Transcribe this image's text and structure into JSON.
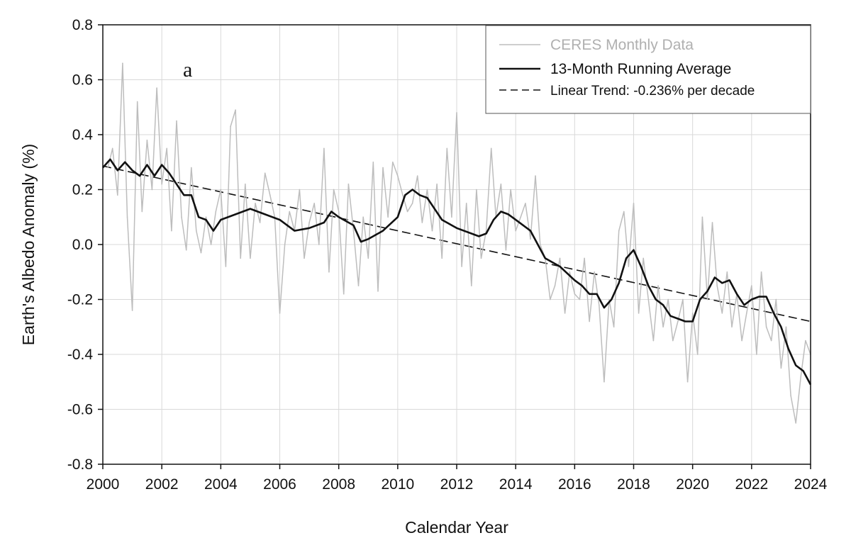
{
  "chart_data": {
    "type": "line",
    "title": "",
    "panel_label": "a",
    "xlabel": "Calendar Year",
    "ylabel": "Earth's Albedo Anomaly (%)",
    "xlim": [
      2000,
      2024
    ],
    "ylim": [
      -0.8,
      0.8
    ],
    "x_ticks": [
      2000,
      2002,
      2004,
      2006,
      2008,
      2010,
      2012,
      2014,
      2016,
      2018,
      2020,
      2022,
      2024
    ],
    "y_ticks": [
      0.8,
      0.6,
      0.4,
      0.2,
      0.0,
      -0.2,
      -0.4,
      -0.6,
      -0.8
    ],
    "x_tick_labels": [
      "2000",
      "2002",
      "2004",
      "2006",
      "2008",
      "2010",
      "2012",
      "2014",
      "2016",
      "2018",
      "2020",
      "2022",
      "2024"
    ],
    "y_tick_labels": [
      "0.8",
      "0.6",
      "0.4",
      "0.2",
      "0.0",
      "-0.2",
      "-0.4",
      "-0.6",
      "-0.8"
    ],
    "grid": true,
    "legend": {
      "position": "top-right",
      "entries": [
        {
          "label": "CERES Monthly Data",
          "style": "thin-gray"
        },
        {
          "label": "13-Month Running Average",
          "style": "thick-black"
        },
        {
          "label": "Linear Trend: -0.236% per decade",
          "style": "dashed-black"
        }
      ]
    },
    "colors": {
      "monthly": "#bdbdbd",
      "running": "#111111",
      "trend": "#111111",
      "grid": "#d9d9d9",
      "axis": "#111111"
    },
    "series": [
      {
        "name": "CERES Monthly Data",
        "x": [
          2000.17,
          2000.33,
          2000.5,
          2000.67,
          2000.83,
          2001.0,
          2001.17,
          2001.33,
          2001.5,
          2001.67,
          2001.83,
          2002.0,
          2002.17,
          2002.33,
          2002.5,
          2002.67,
          2002.83,
          2003.0,
          2003.17,
          2003.33,
          2003.5,
          2003.67,
          2003.83,
          2004.0,
          2004.17,
          2004.33,
          2004.5,
          2004.67,
          2004.83,
          2005.0,
          2005.17,
          2005.33,
          2005.5,
          2005.67,
          2005.83,
          2006.0,
          2006.17,
          2006.33,
          2006.5,
          2006.67,
          2006.83,
          2007.0,
          2007.17,
          2007.33,
          2007.5,
          2007.67,
          2007.83,
          2008.0,
          2008.17,
          2008.33,
          2008.5,
          2008.67,
          2008.83,
          2009.0,
          2009.17,
          2009.33,
          2009.5,
          2009.67,
          2009.83,
          2010.0,
          2010.17,
          2010.33,
          2010.5,
          2010.67,
          2010.83,
          2011.0,
          2011.17,
          2011.33,
          2011.5,
          2011.67,
          2011.83,
          2012.0,
          2012.17,
          2012.33,
          2012.5,
          2012.67,
          2012.83,
          2013.0,
          2013.17,
          2013.33,
          2013.5,
          2013.67,
          2013.83,
          2014.0,
          2014.17,
          2014.33,
          2014.5,
          2014.67,
          2014.83,
          2015.0,
          2015.17,
          2015.33,
          2015.5,
          2015.67,
          2015.83,
          2016.0,
          2016.17,
          2016.33,
          2016.5,
          2016.67,
          2016.83,
          2017.0,
          2017.17,
          2017.33,
          2017.5,
          2017.67,
          2017.83,
          2018.0,
          2018.17,
          2018.33,
          2018.5,
          2018.67,
          2018.83,
          2019.0,
          2019.17,
          2019.33,
          2019.5,
          2019.67,
          2019.83,
          2020.0,
          2020.17,
          2020.33,
          2020.5,
          2020.67,
          2020.83,
          2021.0,
          2021.17,
          2021.33,
          2021.5,
          2021.67,
          2021.83,
          2022.0,
          2022.17,
          2022.33,
          2022.5,
          2022.67,
          2022.83,
          2023.0,
          2023.17,
          2023.33,
          2023.5,
          2023.67,
          2023.83,
          2024.0
        ],
        "y": [
          0.28,
          0.35,
          0.18,
          0.66,
          0.1,
          -0.24,
          0.52,
          0.12,
          0.38,
          0.2,
          0.57,
          0.22,
          0.35,
          0.05,
          0.45,
          0.1,
          -0.02,
          0.28,
          0.05,
          -0.03,
          0.1,
          0.0,
          0.12,
          0.2,
          -0.08,
          0.43,
          0.49,
          -0.05,
          0.22,
          -0.05,
          0.15,
          0.08,
          0.26,
          0.18,
          0.1,
          -0.25,
          0.0,
          0.12,
          0.05,
          0.2,
          -0.05,
          0.08,
          0.15,
          0.0,
          0.35,
          -0.1,
          0.2,
          0.12,
          -0.18,
          0.22,
          0.05,
          -0.15,
          0.1,
          -0.05,
          0.3,
          -0.17,
          0.28,
          0.1,
          0.3,
          0.25,
          0.18,
          0.12,
          0.15,
          0.25,
          0.08,
          0.2,
          0.05,
          0.22,
          -0.05,
          0.35,
          0.1,
          0.48,
          -0.08,
          0.15,
          -0.15,
          0.2,
          -0.05,
          0.05,
          0.35,
          0.1,
          0.22,
          -0.02,
          0.2,
          0.05,
          0.1,
          0.15,
          0.02,
          0.25,
          0.0,
          -0.05,
          -0.2,
          -0.15,
          -0.05,
          -0.25,
          -0.1,
          -0.18,
          -0.2,
          -0.05,
          -0.28,
          -0.1,
          -0.22,
          -0.5,
          -0.2,
          -0.3,
          0.05,
          0.12,
          -0.08,
          0.15,
          -0.25,
          -0.05,
          -0.2,
          -0.35,
          -0.15,
          -0.3,
          -0.2,
          -0.35,
          -0.28,
          -0.2,
          -0.5,
          -0.25,
          -0.4,
          0.1,
          -0.2,
          0.08,
          -0.15,
          -0.25,
          -0.1,
          -0.3,
          -0.18,
          -0.35,
          -0.25,
          -0.15,
          -0.4,
          -0.1,
          -0.3,
          -0.35,
          -0.2,
          -0.45,
          -0.3,
          -0.55,
          -0.65,
          -0.48,
          -0.35,
          -0.4
        ]
      },
      {
        "name": "13-Month Running Average",
        "x": [
          2000.0,
          2000.25,
          2000.5,
          2000.75,
          2001.0,
          2001.25,
          2001.5,
          2001.75,
          2002.0,
          2002.25,
          2002.5,
          2002.75,
          2003.0,
          2003.25,
          2003.5,
          2003.75,
          2004.0,
          2004.5,
          2005.0,
          2005.5,
          2006.0,
          2006.5,
          2007.0,
          2007.5,
          2007.75,
          2008.0,
          2008.5,
          2008.75,
          2009.0,
          2009.5,
          2010.0,
          2010.25,
          2010.5,
          2010.75,
          2011.0,
          2011.5,
          2012.0,
          2012.5,
          2012.75,
          2013.0,
          2013.25,
          2013.5,
          2013.75,
          2014.0,
          2014.5,
          2015.0,
          2015.5,
          2016.0,
          2016.25,
          2016.5,
          2016.75,
          2017.0,
          2017.25,
          2017.5,
          2017.75,
          2018.0,
          2018.25,
          2018.5,
          2018.75,
          2019.0,
          2019.25,
          2019.5,
          2019.75,
          2020.0,
          2020.25,
          2020.5,
          2020.75,
          2021.0,
          2021.25,
          2021.5,
          2021.75,
          2022.0,
          2022.25,
          2022.5,
          2022.75,
          2023.0,
          2023.25,
          2023.5,
          2023.75,
          2024.0
        ],
        "y": [
          0.28,
          0.31,
          0.27,
          0.3,
          0.27,
          0.25,
          0.29,
          0.25,
          0.29,
          0.26,
          0.22,
          0.18,
          0.18,
          0.1,
          0.09,
          0.05,
          0.09,
          0.11,
          0.13,
          0.11,
          0.09,
          0.05,
          0.06,
          0.08,
          0.12,
          0.1,
          0.07,
          0.01,
          0.02,
          0.05,
          0.1,
          0.18,
          0.2,
          0.18,
          0.17,
          0.09,
          0.06,
          0.04,
          0.03,
          0.04,
          0.09,
          0.12,
          0.11,
          0.09,
          0.05,
          -0.05,
          -0.08,
          -0.13,
          -0.15,
          -0.18,
          -0.18,
          -0.23,
          -0.2,
          -0.14,
          -0.05,
          -0.02,
          -0.08,
          -0.15,
          -0.2,
          -0.22,
          -0.26,
          -0.27,
          -0.28,
          -0.28,
          -0.2,
          -0.17,
          -0.12,
          -0.14,
          -0.13,
          -0.18,
          -0.22,
          -0.2,
          -0.19,
          -0.19,
          -0.25,
          -0.3,
          -0.38,
          -0.44,
          -0.46,
          -0.51
        ]
      },
      {
        "name": "Linear Trend: -0.236% per decade",
        "x": [
          2000.0,
          2024.0
        ],
        "y": [
          0.286,
          -0.28
        ]
      }
    ]
  }
}
